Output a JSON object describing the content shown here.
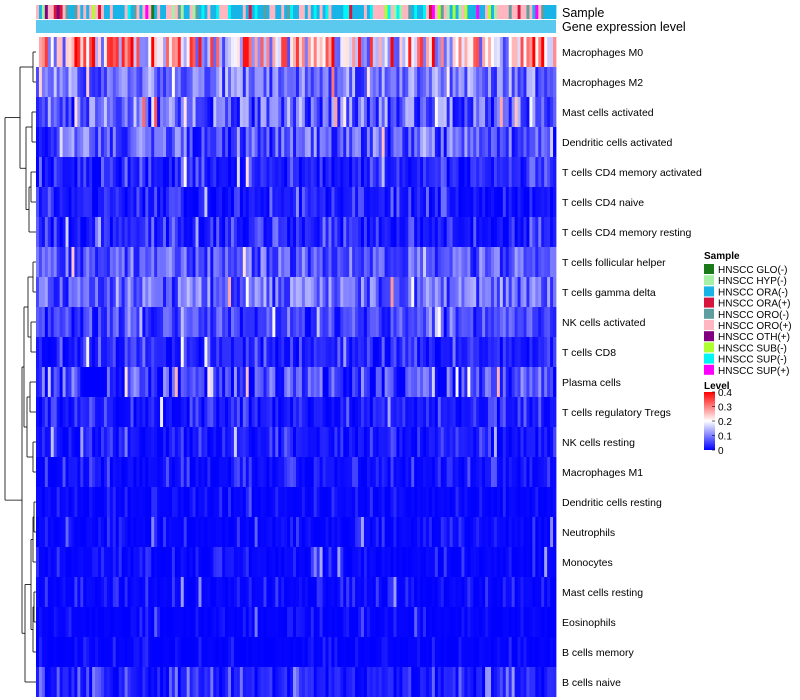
{
  "chart_data": {
    "type": "heatmap",
    "title": "",
    "n_samples": 176,
    "annotation_labels": {
      "sample": "Sample",
      "gene_expression": "Gene expression level"
    },
    "rows": [
      {
        "label": "Macrophages M0",
        "mean": 0.22,
        "spread": 0.17
      },
      {
        "label": "Macrophages M2",
        "mean": 0.09,
        "spread": 0.07
      },
      {
        "label": "Mast cells activated",
        "mean": 0.08,
        "spread": 0.08
      },
      {
        "label": "Dendritic cells activated",
        "mean": 0.07,
        "spread": 0.07
      },
      {
        "label": "T cells CD4 memory activated",
        "mean": 0.04,
        "spread": 0.06
      },
      {
        "label": "T cells CD4 naive",
        "mean": 0.03,
        "spread": 0.06
      },
      {
        "label": "T cells CD4 memory resting",
        "mean": 0.04,
        "spread": 0.06
      },
      {
        "label": "T cells follicular helper",
        "mean": 0.07,
        "spread": 0.06
      },
      {
        "label": "T cells gamma delta",
        "mean": 0.08,
        "spread": 0.07
      },
      {
        "label": "NK cells activated",
        "mean": 0.05,
        "spread": 0.05
      },
      {
        "label": "T cells CD8",
        "mean": 0.04,
        "spread": 0.06
      },
      {
        "label": "Plasma cells",
        "mean": 0.05,
        "spread": 0.07
      },
      {
        "label": "T cells regulatory  Tregs",
        "mean": 0.03,
        "spread": 0.05
      },
      {
        "label": "NK cells resting",
        "mean": 0.03,
        "spread": 0.05
      },
      {
        "label": "Macrophages M1",
        "mean": 0.02,
        "spread": 0.05
      },
      {
        "label": "Dendritic cells resting",
        "mean": 0.01,
        "spread": 0.03
      },
      {
        "label": "Neutrophils",
        "mean": 0.01,
        "spread": 0.04
      },
      {
        "label": "Monocytes",
        "mean": 0.01,
        "spread": 0.04
      },
      {
        "label": "Mast cells resting",
        "mean": 0.01,
        "spread": 0.04
      },
      {
        "label": "Eosinophils",
        "mean": 0.005,
        "spread": 0.03
      },
      {
        "label": "B cells memory",
        "mean": 0.005,
        "spread": 0.03
      },
      {
        "label": "B cells naive",
        "mean": 0.04,
        "spread": 0.08
      }
    ],
    "sample_groups": [
      {
        "label": "HNSCC GLO(-)",
        "color": "#1a7a1a"
      },
      {
        "label": "HNSCC HYP(-)",
        "color": "#a6f0a6"
      },
      {
        "label": "HNSCC ORA(-)",
        "color": "#18b4e8"
      },
      {
        "label": "HNSCC ORA(+)",
        "color": "#d7143c"
      },
      {
        "label": "HNSCC ORO(-)",
        "color": "#5f9ea0"
      },
      {
        "label": "HNSCC ORO(+)",
        "color": "#ffb6c1"
      },
      {
        "label": "HNSCC OTH(+)",
        "color": "#800080"
      },
      {
        "label": "HNSCC SUB(-)",
        "color": "#adff2f"
      },
      {
        "label": "HNSCC SUP(-)",
        "color": "#00f5f5"
      },
      {
        "label": "HNSCC SUP(+)",
        "color": "#ff00ff"
      }
    ],
    "gene_expression_color": "#5bc8ee",
    "color_scale": {
      "title": "Level",
      "min": 0,
      "max": 0.4,
      "ticks": [
        "0.4",
        "0.3",
        "0.2",
        "0.1",
        "0"
      ],
      "tick_values": [
        0.4,
        0.3,
        0.2,
        0.1,
        0
      ],
      "colors": [
        "#0000ff",
        "#ffffff",
        "#ff0000"
      ],
      "midpoint": 0.2
    },
    "legend_titles": {
      "sample": "Sample",
      "level": "Level"
    },
    "legend_position": "right",
    "dendrogram": "rows clustered (left)"
  }
}
